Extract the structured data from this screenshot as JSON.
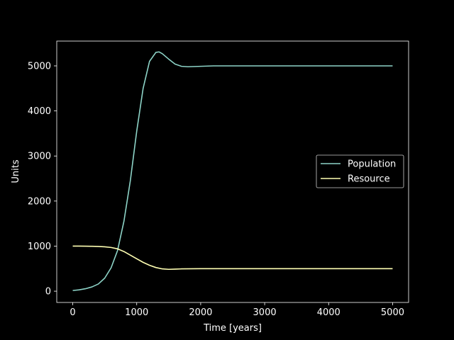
{
  "chart_data": {
    "type": "line",
    "title": "",
    "xlabel": "Time [years]",
    "ylabel": "Units",
    "xlim": [
      -250,
      5250
    ],
    "ylim": [
      -250,
      5550
    ],
    "xticks": [
      0,
      1000,
      2000,
      3000,
      4000,
      5000
    ],
    "yticks": [
      0,
      1000,
      2000,
      3000,
      4000,
      5000
    ],
    "grid": false,
    "legend_position": "center-right",
    "background": "#000000",
    "series": [
      {
        "name": "Population",
        "color": "#8dd3c7",
        "x": [
          0,
          100,
          200,
          300,
          400,
          500,
          600,
          700,
          800,
          900,
          1000,
          1100,
          1200,
          1300,
          1350,
          1400,
          1500,
          1600,
          1700,
          1800,
          2000,
          2200,
          2500,
          3000,
          3500,
          4000,
          4500,
          5000
        ],
        "y": [
          15,
          30,
          55,
          95,
          160,
          290,
          520,
          900,
          1550,
          2450,
          3550,
          4500,
          5100,
          5300,
          5310,
          5270,
          5150,
          5040,
          4990,
          4980,
          4990,
          5000,
          5000,
          5000,
          5000,
          5000,
          5000,
          5000
        ]
      },
      {
        "name": "Resource",
        "color": "#ffffb3",
        "x": [
          0,
          100,
          200,
          300,
          400,
          500,
          600,
          700,
          800,
          900,
          1000,
          1100,
          1200,
          1300,
          1400,
          1500,
          1600,
          1700,
          2000,
          2500,
          3000,
          3500,
          4000,
          4500,
          5000
        ],
        "y": [
          1000,
          1000,
          998,
          996,
          992,
          985,
          970,
          940,
          880,
          800,
          720,
          640,
          575,
          525,
          495,
          485,
          490,
          495,
          500,
          500,
          500,
          500,
          500,
          500,
          500
        ]
      }
    ]
  }
}
